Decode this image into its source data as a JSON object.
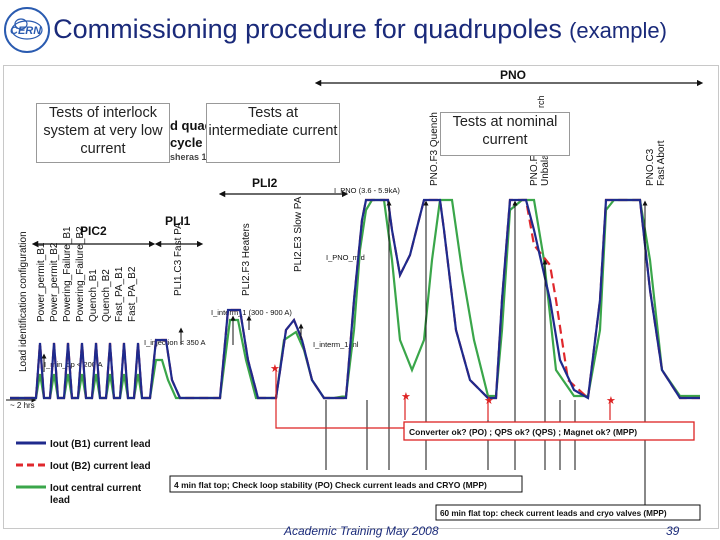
{
  "title": {
    "main": "Commissioning procedure for quadrupoles",
    "suffix": "(example)"
  },
  "overlays": {
    "low": "Tests of interlock system at very low current",
    "intermediate": "Tests at intermediate current",
    "nominal": "Tests at nominal current"
  },
  "chart": {
    "phases": {
      "pno": "PNO",
      "pli2": "PLI2",
      "pic2": "PIC2",
      "pli1": "PLI1"
    },
    "partial_text": {
      "quad": "d quad",
      "cycle": "cycle",
      "sheras": "sheras 1",
      "rch": "rch"
    },
    "vertical_labels": {
      "load_id": "Load identification configuration",
      "pic2_tests": [
        "Power_permit_B1",
        "Power_permit_B2",
        "Powering_Failure_B1",
        "Powering_Failure_B2",
        "Quench_B1",
        "Quench_B2",
        "Fast_PA_B1",
        "Fast_PA_B2"
      ],
      "pli1_c3": "PLI1.C3 Fast PA",
      "pli2_f3": "PLI2.F3 Heaters",
      "pli2_e3": "PLI2.E3 Slow PA",
      "pno_f3": "PNO.F3 Quench",
      "pno_f": "PNO.F",
      "pno_unbal": "Unbala",
      "pno_c3": "PNO.C3",
      "pno_fast_abort": "Fast Abort"
    },
    "current_labels": {
      "pno": "I_PNO (3.6 - 5.9kA)",
      "pno_mid": "I_PNO_mid",
      "interm1": "I_interm_1 (300 - 900 A)",
      "interm1_short": "I_interm_1_nl",
      "injection": "I_injection < 350 A",
      "min_op": "I_min_op < 200 A"
    },
    "time_note": "~ 2 hrs",
    "legend": [
      "Iout (B1) current lead",
      "Iout (B2) current lead",
      "Iout central current"
    ],
    "legend_cut": "lead",
    "notes": {
      "converter": "Converter ok? (PO) ; QPS ok? (QPS) ; Magnet ok? (MPP)",
      "four_min": "4 min flat top; Check loop stability (PO) Check current leads and CRYO (MPP)",
      "sixty_min": "60 min flat top: check current leads and cryo valves (MPP)"
    },
    "colors": {
      "b1": "#1f2a8c",
      "b2": "#e0282d",
      "central": "#3aa64a",
      "note_box": "#d22",
      "title": "#1a2a7a"
    }
  },
  "footer": {
    "left": "Academic Training May 2008",
    "page": "39"
  }
}
